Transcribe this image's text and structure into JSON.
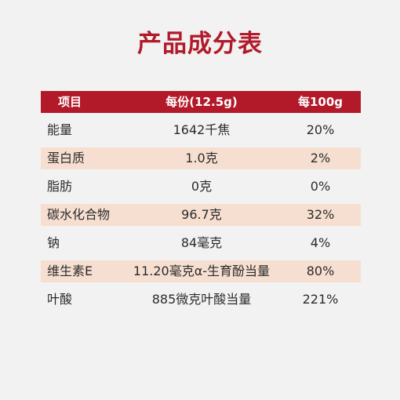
{
  "title": "产品成分表",
  "colors": {
    "page_background": "#f2f2f2",
    "title": "#b21a2a",
    "header_background": "#b21a2a",
    "header_text": "#ffffff",
    "body_text": "#2b2b2b",
    "stripe": "#f6dfd0"
  },
  "table": {
    "headers": [
      "项目",
      "每份(12.5g)",
      "每100g"
    ],
    "rows": [
      {
        "name": "能量",
        "per_serving": "1642千焦",
        "per_100g": "20%",
        "striped": false
      },
      {
        "name": "蛋白质",
        "per_serving": "1.0克",
        "per_100g": "2%",
        "striped": true
      },
      {
        "name": "脂肪",
        "per_serving": "0克",
        "per_100g": "0%",
        "striped": false
      },
      {
        "name": "碳水化合物",
        "per_serving": "96.7克",
        "per_100g": "32%",
        "striped": true
      },
      {
        "name": "钠",
        "per_serving": "84毫克",
        "per_100g": "4%",
        "striped": false
      },
      {
        "name": "维生素E",
        "per_serving": "11.20毫克α-生育酚当量",
        "per_100g": "80%",
        "striped": true
      },
      {
        "name": "叶酸",
        "per_serving": "885微克叶酸当量",
        "per_100g": "221%",
        "striped": false
      }
    ]
  }
}
